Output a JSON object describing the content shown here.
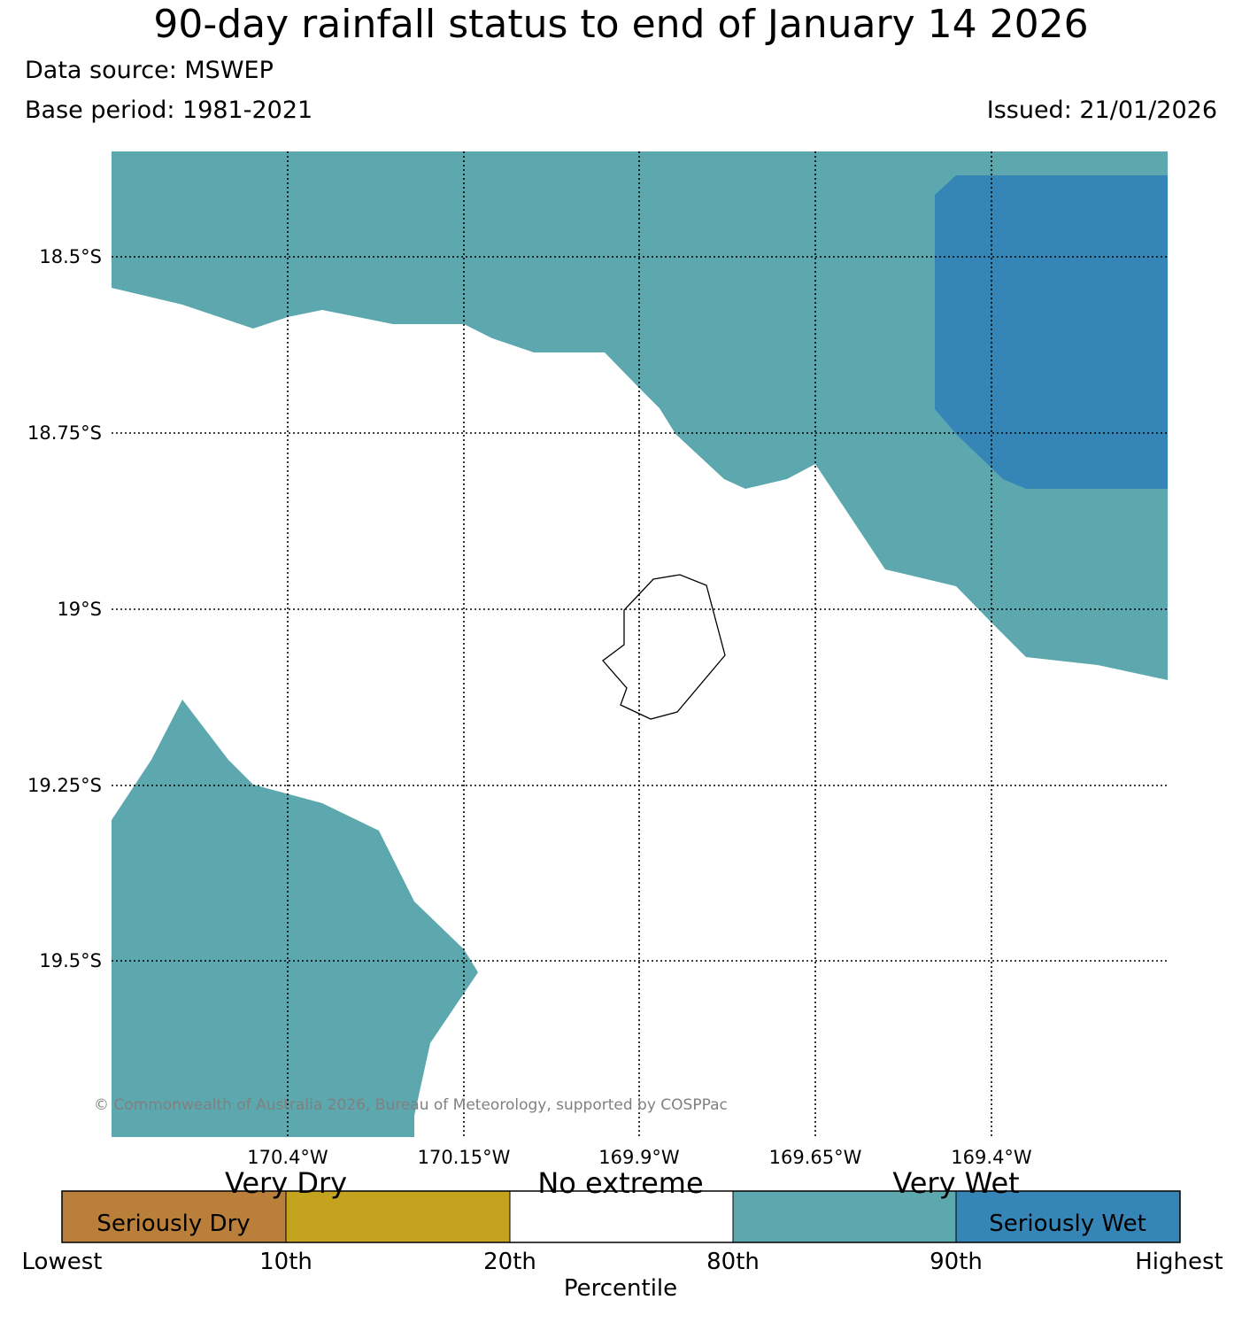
{
  "header": {
    "title": "90-day rainfall status to end of January 14 2026",
    "data_source": "Data source: MSWEP",
    "base_period": "Base period: 1981-2021",
    "issued": "Issued: 21/01/2026"
  },
  "map": {
    "lat_labels": [
      "18.5°S",
      "18.75°S",
      "19°S",
      "19.25°S",
      "19.5°S"
    ],
    "lon_labels": [
      "170.4°W",
      "170.15°W",
      "169.9°W",
      "169.65°W",
      "169.4°W"
    ],
    "copyright": "© Commonwealth of Australia 2026, Bureau of Meteorology, supported by COSPPac",
    "colors": {
      "very_wet": "#5ca8ae",
      "seriously_wet": "#3585b7",
      "background": "#ffffff"
    }
  },
  "legend": {
    "categories": [
      {
        "label": "Very Dry",
        "inner": "Seriously Dry",
        "color": "#b97f3b"
      },
      {
        "label": "",
        "inner": "",
        "color": "#c4a41f"
      },
      {
        "label": "No extreme",
        "inner": "",
        "color": "#ffffff"
      },
      {
        "label": "Very Wet",
        "inner": "",
        "color": "#5ca8ae"
      },
      {
        "label": "",
        "inner": "Seriously Wet",
        "color": "#3585b7"
      }
    ],
    "top_labels": {
      "very_dry": "Very Dry",
      "no_extreme": "No extreme",
      "very_wet": "Very Wet"
    },
    "inner_labels": {
      "seriously_dry": "Seriously Dry",
      "seriously_wet": "Seriously Wet"
    },
    "ticks": [
      "Lowest",
      "10th",
      "20th",
      "80th",
      "90th",
      "Highest"
    ],
    "axis_label": "Percentile"
  }
}
